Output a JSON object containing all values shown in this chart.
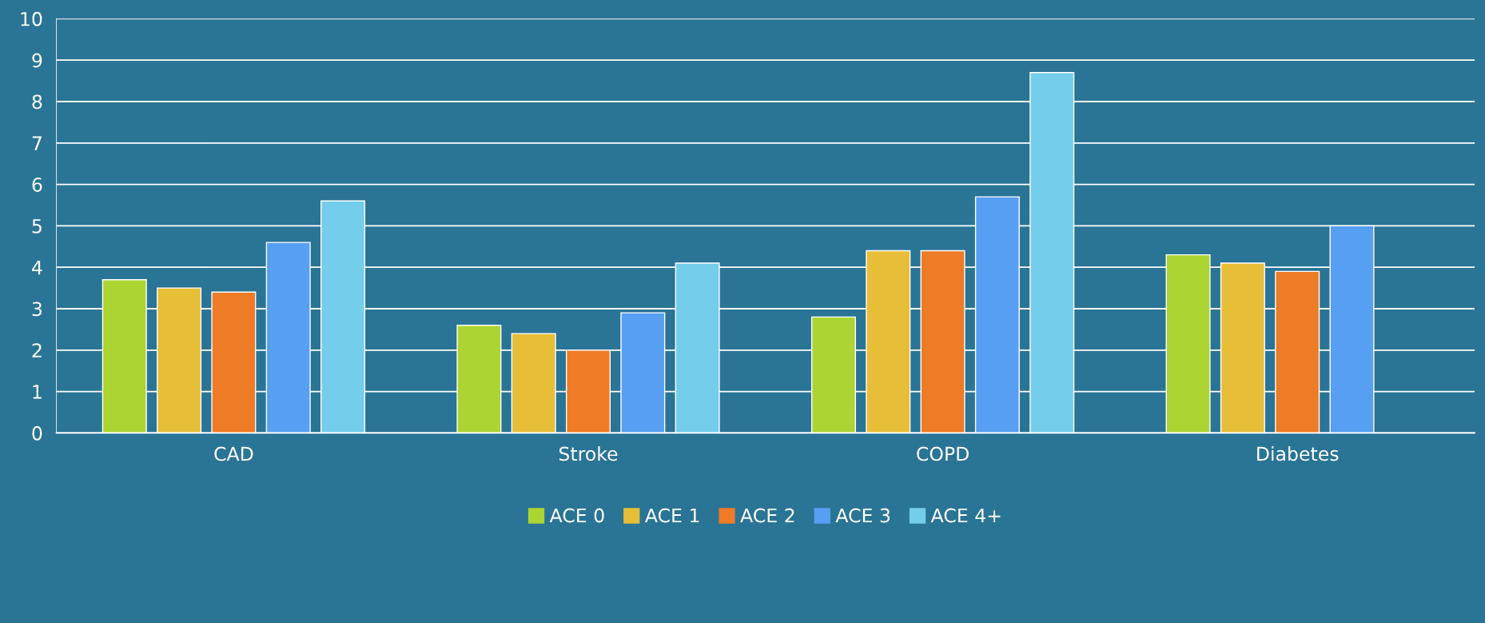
{
  "chart_data": {
    "type": "bar",
    "categories": [
      "CAD",
      "Stroke",
      "COPD",
      "Diabetes"
    ],
    "series": [
      {
        "name": "ACE 0",
        "color": "#acd433",
        "values": [
          3.7,
          2.6,
          2.8,
          4.3
        ]
      },
      {
        "name": "ACE 1",
        "color": "#e6be37",
        "values": [
          3.5,
          2.4,
          4.4,
          4.1
        ]
      },
      {
        "name": "ACE 2",
        "color": "#ee7b26",
        "values": [
          3.4,
          2.0,
          4.4,
          3.9
        ]
      },
      {
        "name": "ACE 3",
        "color": "#579ff2",
        "values": [
          4.6,
          2.9,
          5.7,
          5.0
        ]
      },
      {
        "name": "ACE 4+",
        "color": "#74cdeb",
        "values": [
          5.6,
          4.1,
          8.7,
          null
        ]
      }
    ],
    "ylim": [
      0,
      10
    ],
    "yticks": [
      0,
      1,
      2,
      3,
      4,
      5,
      6,
      7,
      8,
      9,
      10
    ],
    "grid": "y",
    "legend": "bottom"
  }
}
